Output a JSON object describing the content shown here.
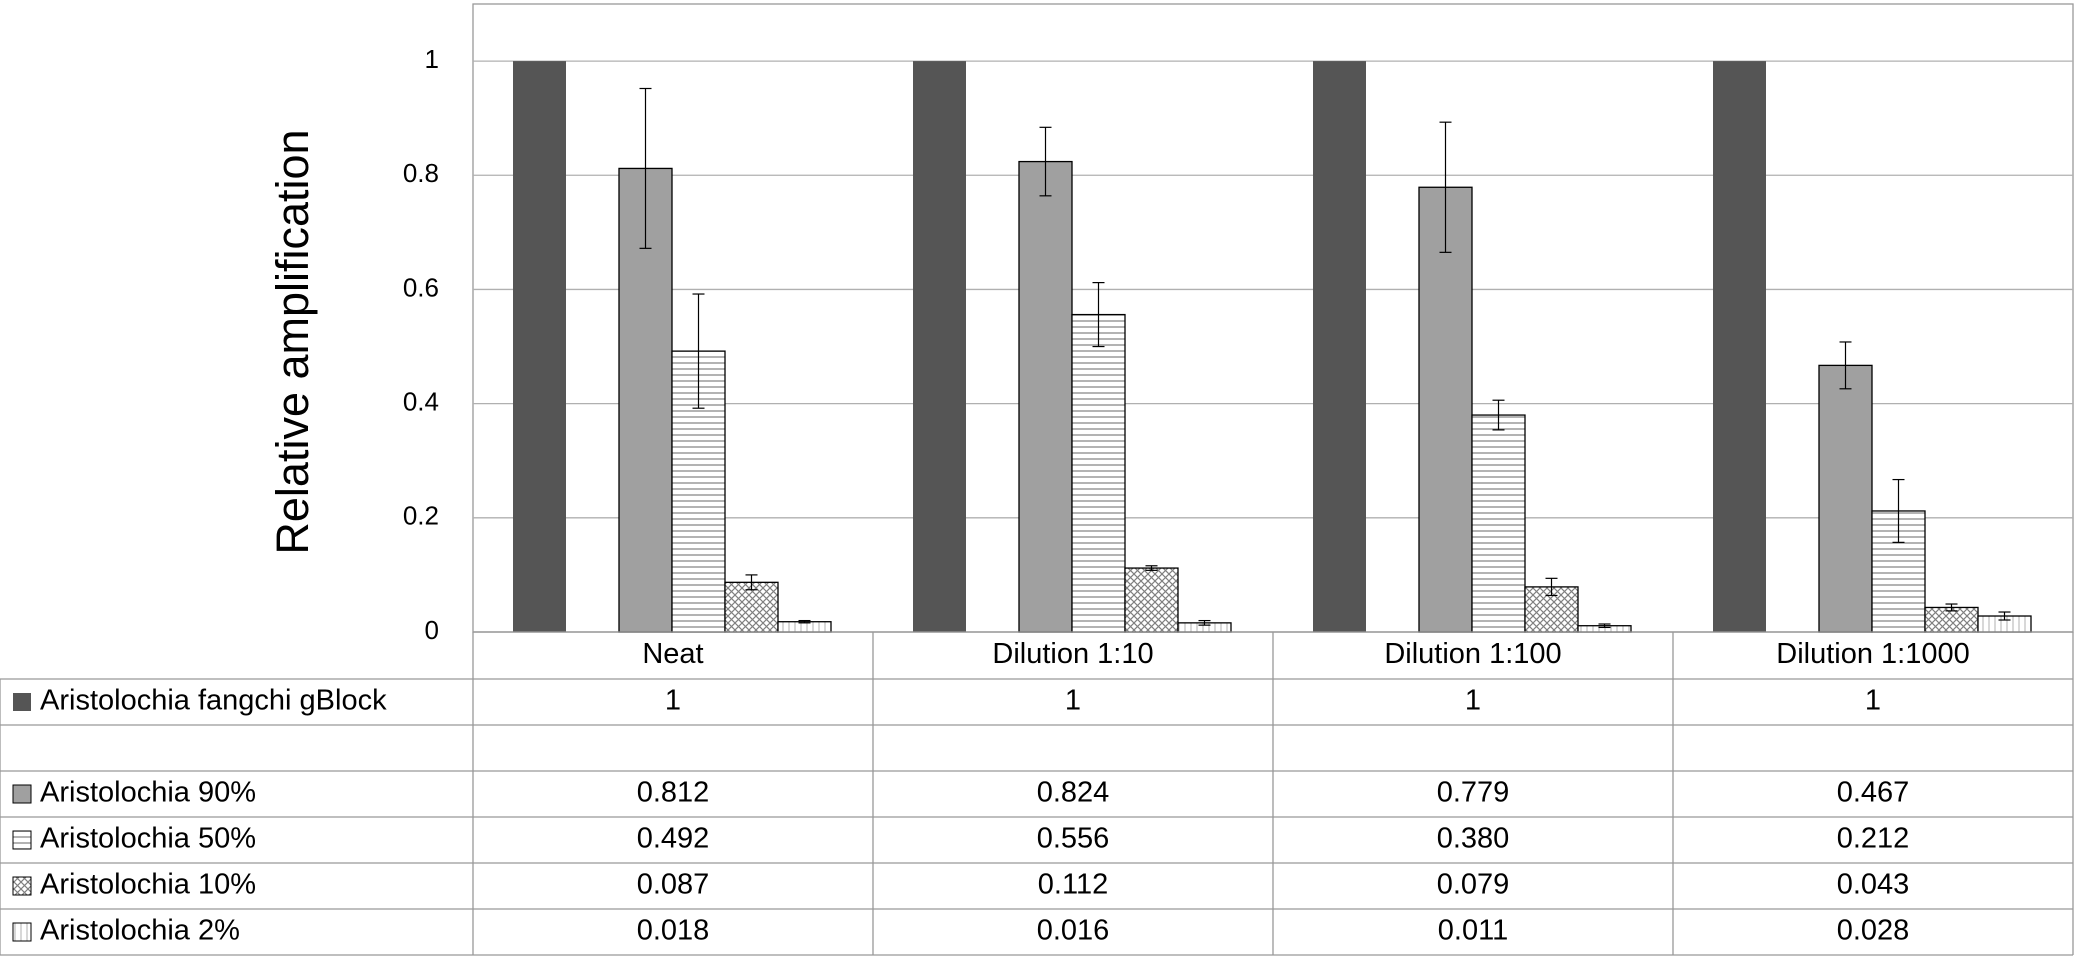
{
  "chart_data": {
    "type": "bar",
    "y_label": "Relative amplification",
    "categories": [
      "Neat",
      "Dilution 1:10",
      "Dilution 1:100",
      "Dilution 1:1000"
    ],
    "series": [
      {
        "name": "Aristolochia fangchi gBlock",
        "color": "#555555",
        "hatch": "solid",
        "values": [
          1,
          1,
          1,
          1
        ]
      },
      {
        "name": "Aristolochia 90%",
        "color": "#a0a0a0",
        "hatch": "solid",
        "values": [
          0.812,
          0.824,
          0.779,
          0.467
        ],
        "errors": [
          0.14,
          0.06,
          0.114,
          0.041
        ]
      },
      {
        "name": "Aristolochia 50%",
        "color": "#808080",
        "hatch": "hlines",
        "values": [
          0.492,
          0.556,
          0.38,
          0.212
        ],
        "value_labels": [
          "0.492",
          "0.556",
          "0.380",
          "0.212"
        ],
        "errors": [
          0.1,
          0.056,
          0.026,
          0.055
        ]
      },
      {
        "name": "Aristolochia 10%",
        "color": "#808080",
        "hatch": "cross",
        "values": [
          0.087,
          0.112,
          0.079,
          0.043
        ],
        "errors": [
          0.013,
          0.004,
          0.015,
          0.006
        ]
      },
      {
        "name": "Aristolochia 2%",
        "color": "#909090",
        "hatch": "vlines",
        "values": [
          0.018,
          0.016,
          0.011,
          0.028
        ],
        "errors": [
          0.002,
          0.004,
          0.003,
          0.007
        ]
      }
    ],
    "ylim": [
      0,
      1.1
    ],
    "yticks": [
      0,
      0.2,
      0.4,
      0.6,
      0.8,
      1
    ],
    "grid": true
  }
}
